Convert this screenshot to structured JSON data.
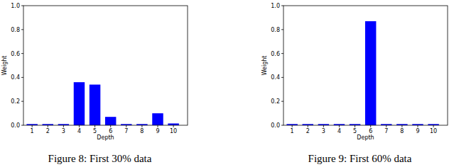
{
  "chart_data": [
    {
      "type": "bar",
      "title": "Figure 8: First 30% data",
      "x_label": "Depth",
      "y_label": "Weight",
      "categories": [
        "1",
        "2",
        "3",
        "4",
        "5",
        "6",
        "7",
        "8",
        "9",
        "10"
      ],
      "values": [
        0.01,
        0.01,
        0.01,
        0.36,
        0.34,
        0.07,
        0.01,
        0.01,
        0.1,
        0.015
      ],
      "color": "#0000ff",
      "xlim": [
        0.45,
        10.9
      ],
      "ylim": [
        0,
        1
      ],
      "yticks": [
        {
          "value": 0,
          "label": "0.0"
        },
        {
          "value": 0.2,
          "label": "0.2"
        },
        {
          "value": 0.4,
          "label": "0.4"
        },
        {
          "value": 0.6,
          "label": "0.6"
        },
        {
          "value": 0.8,
          "label": "0.8"
        },
        {
          "value": 1,
          "label": "1.0"
        }
      ],
      "grid": false
    },
    {
      "type": "bar",
      "title": "Figure 9: First 60% data",
      "x_label": "Depth",
      "y_label": "Weight",
      "categories": [
        "1",
        "2",
        "3",
        "4",
        "5",
        "6",
        "7",
        "8",
        "9",
        "10"
      ],
      "values": [
        0.01,
        0.01,
        0.01,
        0.01,
        0.01,
        0.87,
        0.01,
        0.01,
        0.01,
        0.01
      ],
      "color": "#0000ff",
      "xlim": [
        0.45,
        10.9
      ],
      "ylim": [
        0,
        1
      ],
      "yticks": [
        {
          "value": 0,
          "label": "0.0"
        },
        {
          "value": 0.2,
          "label": "0.2"
        },
        {
          "value": 0.4,
          "label": "0.4"
        },
        {
          "value": 0.6,
          "label": "0.6"
        },
        {
          "value": 0.8,
          "label": "0.8"
        },
        {
          "value": 1,
          "label": "1.0"
        }
      ],
      "grid": false
    }
  ]
}
